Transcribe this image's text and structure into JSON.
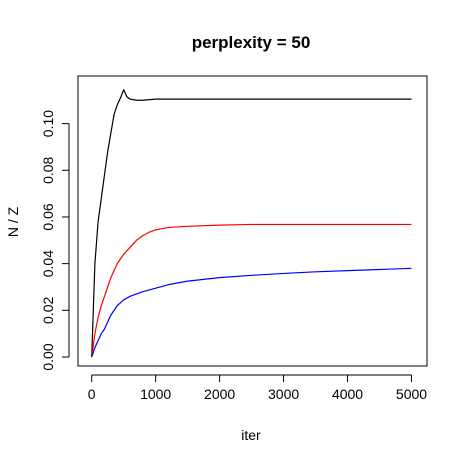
{
  "chart_data": {
    "type": "line",
    "title": "perplexity = 50",
    "xlabel": "iter",
    "ylabel": "N / Z",
    "xlim": [
      0,
      5000
    ],
    "ylim": [
      0,
      0.11
    ],
    "xticks": [
      0,
      1000,
      2000,
      3000,
      4000,
      5000
    ],
    "xtick_labels": [
      "0",
      "1000",
      "2000",
      "3000",
      "4000",
      "5000"
    ],
    "yticks": [
      0.0,
      0.02,
      0.04,
      0.06,
      0.08,
      0.1
    ],
    "ytick_labels": [
      "0.00",
      "0.02",
      "0.04",
      "0.06",
      "0.08",
      "0.10"
    ],
    "grid": false,
    "legend": "none",
    "series": [
      {
        "color": "#000000",
        "x": [
          0,
          50,
          100,
          150,
          200,
          250,
          300,
          350,
          400,
          450,
          500,
          550,
          600,
          700,
          800,
          1000,
          1500,
          2000,
          3000,
          4000,
          5000
        ],
        "y": [
          0.0,
          0.04,
          0.058,
          0.068,
          0.078,
          0.088,
          0.096,
          0.104,
          0.108,
          0.111,
          0.1145,
          0.1115,
          0.1105,
          0.11,
          0.11,
          0.1105,
          0.1105,
          0.1105,
          0.1105,
          0.1105,
          0.1105
        ]
      },
      {
        "color": "#ff0000",
        "x": [
          0,
          50,
          100,
          150,
          200,
          250,
          300,
          400,
          500,
          600,
          700,
          800,
          900,
          1000,
          1200,
          1500,
          2000,
          2500,
          3000,
          4000,
          5000
        ],
        "y": [
          0.0,
          0.01,
          0.017,
          0.022,
          0.026,
          0.03,
          0.034,
          0.04,
          0.044,
          0.047,
          0.05,
          0.052,
          0.0535,
          0.0545,
          0.0555,
          0.056,
          0.0565,
          0.0568,
          0.0568,
          0.0568,
          0.0568
        ]
      },
      {
        "color": "#0000ff",
        "x": [
          0,
          50,
          100,
          150,
          200,
          250,
          300,
          400,
          500,
          600,
          700,
          800,
          1000,
          1200,
          1500,
          2000,
          2500,
          3000,
          3500,
          4000,
          4500,
          5000
        ],
        "y": [
          0.0,
          0.004,
          0.007,
          0.01,
          0.012,
          0.015,
          0.018,
          0.022,
          0.0245,
          0.026,
          0.027,
          0.028,
          0.0295,
          0.031,
          0.0325,
          0.034,
          0.035,
          0.0358,
          0.0365,
          0.037,
          0.0375,
          0.038
        ]
      }
    ]
  }
}
